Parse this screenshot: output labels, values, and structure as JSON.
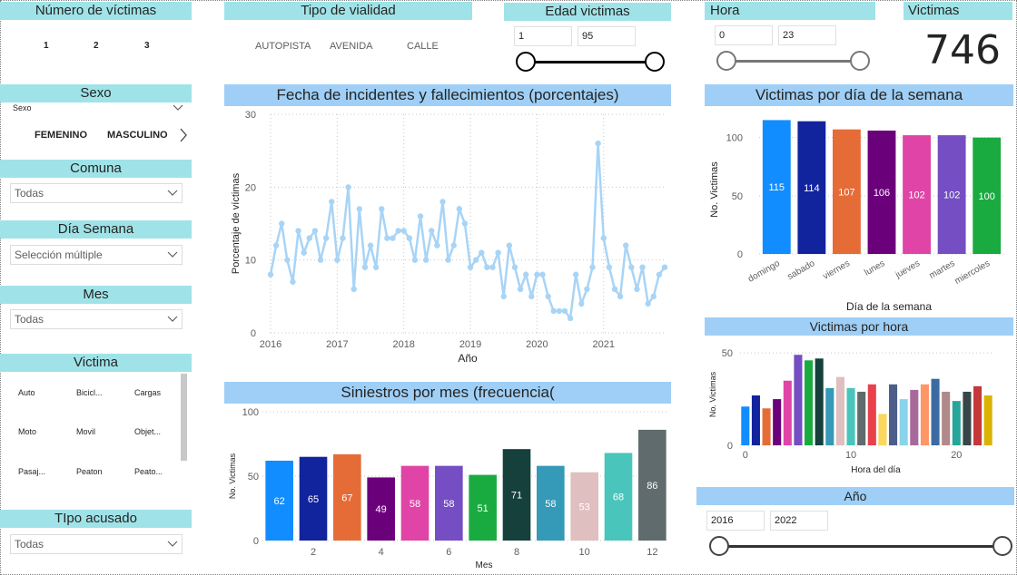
{
  "filters": {
    "num_victimas": {
      "title": "Número de víctimas",
      "options": [
        "1",
        "2",
        "3"
      ]
    },
    "sexo": {
      "title": "Sexo",
      "sublabel": "Sexo",
      "options": [
        "FEMENINO",
        "MASCULINO"
      ]
    },
    "comuna": {
      "title": "Comuna",
      "value": "Todas"
    },
    "dia_semana": {
      "title": "Día Semana",
      "value": "Selección múltiple"
    },
    "mes": {
      "title": "Mes",
      "value": "Todas"
    },
    "victima": {
      "title": "Victima",
      "options": [
        "Auto",
        "Bicicl...",
        "Cargas",
        "Moto",
        "Movil",
        "Objet...",
        "Pasaj...",
        "Peaton",
        "Peato..."
      ]
    },
    "tipo_acusado": {
      "title": "TIpo acusado",
      "value": "Todas"
    },
    "tipo_vialidad": {
      "title": "Tipo de vialidad",
      "options": [
        "AUTOPISTA",
        "AVENIDA",
        "CALLE"
      ]
    },
    "edad": {
      "title": "Edad victimas",
      "min": "1",
      "max": "95"
    },
    "hora": {
      "title": "Hora",
      "min": "0",
      "max": "23"
    },
    "anio": {
      "title": "Año",
      "min": "2016",
      "max": "2022"
    }
  },
  "kpi": {
    "title": "Victimas",
    "value": "746"
  },
  "chart_data": [
    {
      "type": "line",
      "title": "Fecha de incidentes y fallecimientos (porcentajes)",
      "xlabel": "Año",
      "ylabel": "Porcentaje de víctimas",
      "xticks": [
        "2016",
        "2017",
        "2018",
        "2019",
        "2020",
        "2021"
      ],
      "yticks": [
        0,
        10,
        20,
        30
      ],
      "ylim": [
        0,
        30
      ],
      "color": "#a8d4f6",
      "values": [
        8,
        12,
        15,
        10,
        7,
        14,
        11,
        13,
        14,
        10,
        13,
        18,
        10,
        13,
        20,
        6,
        17,
        9,
        12,
        9,
        17,
        13,
        13,
        14,
        14,
        13,
        10,
        16,
        10,
        14,
        12,
        18,
        10,
        12,
        17,
        15,
        9,
        10,
        11,
        9,
        9,
        11,
        5,
        12,
        9,
        6,
        8,
        5,
        8,
        8,
        5,
        3,
        3,
        3,
        2,
        8,
        4,
        6,
        9,
        26,
        13,
        9,
        6,
        5,
        12,
        9,
        6,
        9,
        4,
        5,
        8,
        9
      ]
    },
    {
      "type": "bar",
      "title": "Siniestros por mes (frecuencia(",
      "xlabel": "Mes",
      "ylabel": "No. Victimas",
      "categories": [
        "1",
        "2",
        "3",
        "4",
        "5",
        "6",
        "7",
        "8",
        "9",
        "10",
        "11",
        "12"
      ],
      "xticks": [
        "2",
        "4",
        "6",
        "8",
        "10",
        "12"
      ],
      "yticks": [
        0,
        50,
        100
      ],
      "ylim": [
        0,
        100
      ],
      "values": [
        62,
        65,
        67,
        49,
        58,
        58,
        51,
        71,
        58,
        53,
        68,
        86
      ],
      "colors": [
        "#118dff",
        "#12239e",
        "#e66c37",
        "#6b007b",
        "#e044a7",
        "#744ec2",
        "#1aab40",
        "#15403c",
        "#3599b8",
        "#dfbfbf",
        "#4ac5bb",
        "#5f6b6d"
      ]
    },
    {
      "type": "bar",
      "title": "Victimas por día de la semana",
      "xlabel": "Día de la semana",
      "ylabel": "No. Victimas",
      "categories": [
        "domingo",
        "sabado",
        "viernes",
        "lunes",
        "jueves",
        "martes",
        "miercoles"
      ],
      "yticks": [
        0,
        50,
        100
      ],
      "ylim": [
        0,
        120
      ],
      "values": [
        115,
        114,
        107,
        106,
        102,
        102,
        100
      ],
      "colors": [
        "#118dff",
        "#12239e",
        "#e66c37",
        "#6b007b",
        "#e044a7",
        "#744ec2",
        "#1aab40"
      ]
    },
    {
      "type": "bar",
      "title": "Victimas por hora",
      "xlabel": "Hora del día",
      "ylabel": "No. Victimas",
      "xticks": [
        "0",
        "10",
        "20"
      ],
      "yticks": [
        0,
        50
      ],
      "ylim": [
        0,
        55
      ],
      "values": [
        21,
        27,
        20,
        25,
        35,
        49,
        46,
        47,
        31,
        37,
        31,
        29,
        33,
        17,
        33,
        25,
        30,
        33,
        36,
        29,
        24,
        29,
        32,
        27
      ],
      "colors": [
        "#118dff",
        "#12239e",
        "#e66c37",
        "#6b007b",
        "#e044a7",
        "#744ec2",
        "#1aab40",
        "#15403c",
        "#3599b8",
        "#dfbfbf",
        "#4ac5bb",
        "#5f6b6d",
        "#e8414b",
        "#fbd75d",
        "#4c5d8a",
        "#8ad4eb",
        "#a66999",
        "#fe9666",
        "#3c6ba1",
        "#b08a8a",
        "#26a69a",
        "#374649",
        "#c5383a",
        "#d9b300"
      ]
    }
  ]
}
